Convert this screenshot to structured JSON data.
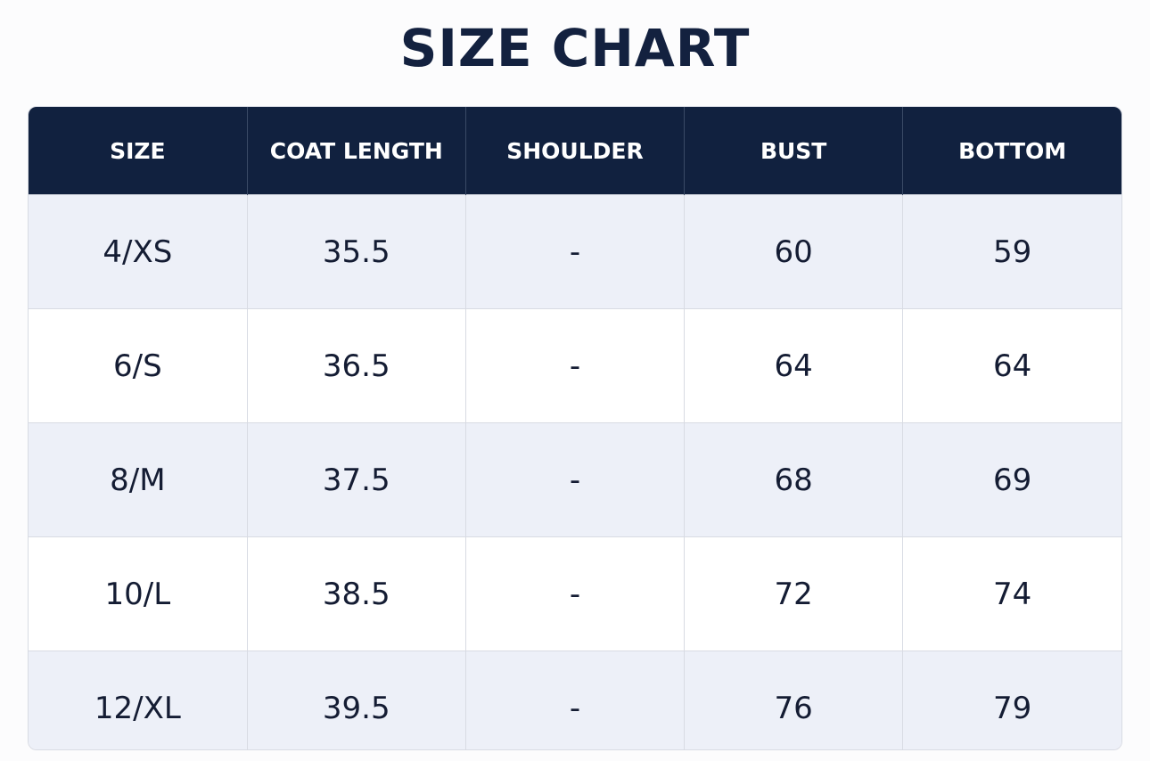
{
  "header": {
    "title": "SIZE CHART"
  },
  "table": {
    "columns": [
      "SIZE",
      "COAT LENGTH",
      "SHOULDER",
      "BUST",
      "BOTTOM"
    ],
    "rows": [
      [
        "4/XS",
        "35.5",
        "-",
        "60",
        "59"
      ],
      [
        "6/S",
        "36.5",
        "-",
        "64",
        "64"
      ],
      [
        "8/M",
        "37.5",
        "-",
        "68",
        "69"
      ],
      [
        "10/L",
        "38.5",
        "-",
        "72",
        "74"
      ],
      [
        "12/XL",
        "39.5",
        "-",
        "76",
        "79"
      ]
    ]
  }
}
